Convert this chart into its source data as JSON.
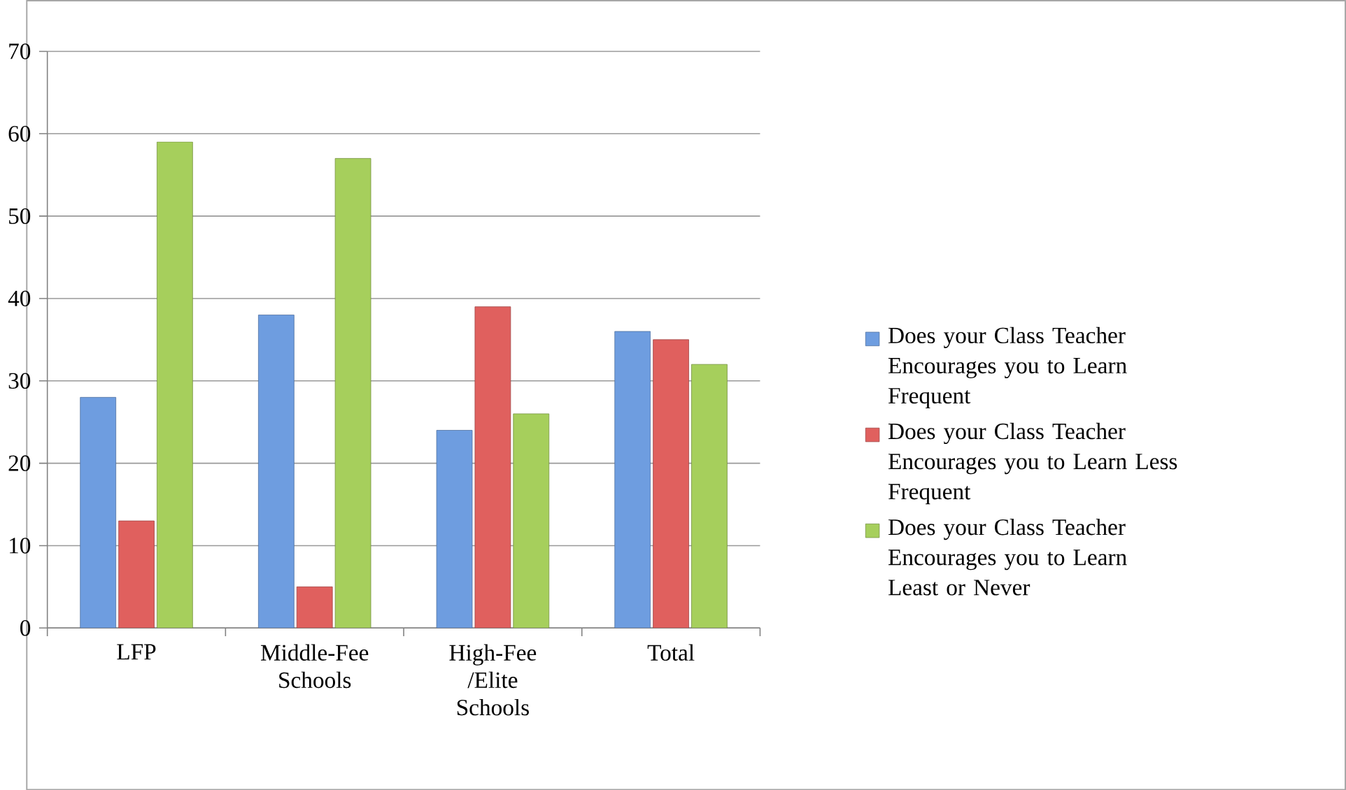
{
  "chart_data": {
    "type": "bar",
    "categories": [
      "LFP",
      "Middle-Fee Schools",
      "High-Fee /Elite Schools",
      "Total"
    ],
    "series": [
      {
        "name": "Does your Class Teacher Encourages you to Learn Frequent",
        "color": "#6e9de0",
        "values": [
          28,
          38,
          24,
          36
        ]
      },
      {
        "name": "Does your Class Teacher Encourages you to Learn Less Frequent",
        "color": "#e0605e",
        "values": [
          13,
          5,
          39,
          35
        ]
      },
      {
        "name": "Does your Class Teacher Encourages you to Learn Least or Never",
        "color": "#a6cf5c",
        "values": [
          59,
          57,
          26,
          32
        ]
      }
    ],
    "ylim": [
      0,
      70
    ],
    "yticks": [
      0,
      10,
      20,
      30,
      40,
      50,
      60,
      70
    ],
    "grid": "y",
    "legend": "right"
  }
}
